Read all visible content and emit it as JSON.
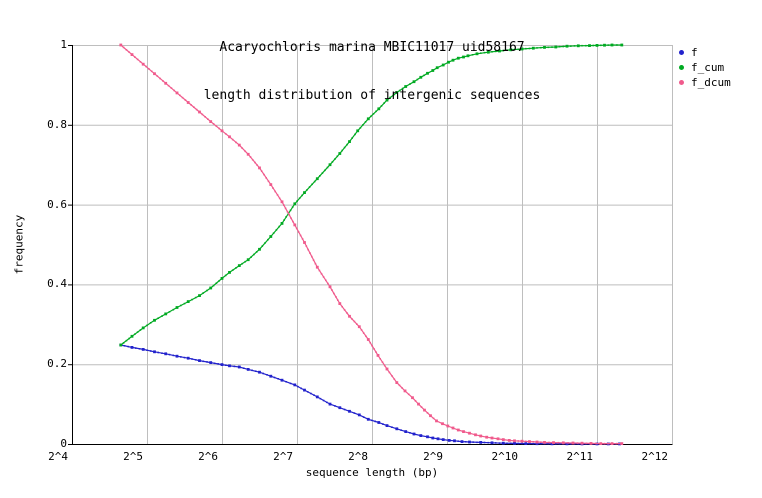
{
  "colors": {
    "background": "#ffffff",
    "axis": "#000000",
    "grid": "#bebebe",
    "text": "#000000",
    "series_f": "#2222cc",
    "series_f_cum": "#00aa22",
    "series_f_dcum": "#f05a8c"
  },
  "legend": {
    "items": [
      {
        "label": "f",
        "color": "#2222cc"
      },
      {
        "label": "f_cum",
        "color": "#00aa22"
      },
      {
        "label": "f_dcum",
        "color": "#f05a8c"
      }
    ]
  },
  "chart_data": {
    "type": "line",
    "title": "Acaryochloris marina MBIC11017 uid58167",
    "subtitle": "length distribution of intergenic sequences",
    "xlabel": "sequence length (bp)",
    "ylabel": "frequency",
    "x_scale": "log2",
    "xlim_log2": [
      4,
      12
    ],
    "ylim": [
      0,
      1
    ],
    "grid": true,
    "legend_position": "right-outside",
    "x_ticks": [
      {
        "label": "2^4",
        "log2": 4
      },
      {
        "label": "2^5",
        "log2": 5
      },
      {
        "label": "2^6",
        "log2": 6
      },
      {
        "label": "2^7",
        "log2": 7
      },
      {
        "label": "2^8",
        "log2": 8
      },
      {
        "label": "2^9",
        "log2": 9
      },
      {
        "label": "2^10",
        "log2": 10
      },
      {
        "label": "2^11",
        "log2": 11
      },
      {
        "label": "2^12",
        "log2": 12
      }
    ],
    "y_ticks": [
      {
        "label": "0",
        "value": 0
      },
      {
        "label": "0.2",
        "value": 0.2
      },
      {
        "label": "0.4",
        "value": 0.4
      },
      {
        "label": "0.6",
        "value": 0.6
      },
      {
        "label": "0.8",
        "value": 0.8
      },
      {
        "label": "1",
        "value": 1
      }
    ],
    "series": [
      {
        "name": "f",
        "color": "#2222cc",
        "marker": "square-dot",
        "points": [
          [
            4.65,
            0.248
          ],
          [
            4.8,
            0.242
          ],
          [
            4.95,
            0.237
          ],
          [
            5.1,
            0.231
          ],
          [
            5.25,
            0.226
          ],
          [
            5.4,
            0.22
          ],
          [
            5.55,
            0.215
          ],
          [
            5.7,
            0.209
          ],
          [
            5.85,
            0.204
          ],
          [
            6.0,
            0.199
          ],
          [
            6.1,
            0.196
          ],
          [
            6.23,
            0.193
          ],
          [
            6.35,
            0.187
          ],
          [
            6.5,
            0.18
          ],
          [
            6.65,
            0.17
          ],
          [
            6.8,
            0.16
          ],
          [
            6.97,
            0.148
          ],
          [
            7.1,
            0.135
          ],
          [
            7.27,
            0.118
          ],
          [
            7.44,
            0.1
          ],
          [
            7.57,
            0.091
          ],
          [
            7.7,
            0.082
          ],
          [
            7.83,
            0.073
          ],
          [
            7.95,
            0.062
          ],
          [
            8.09,
            0.054
          ],
          [
            8.2,
            0.046
          ],
          [
            8.33,
            0.038
          ],
          [
            8.45,
            0.031
          ],
          [
            8.56,
            0.025
          ],
          [
            8.65,
            0.021
          ],
          [
            8.74,
            0.018
          ],
          [
            8.81,
            0.015
          ],
          [
            8.88,
            0.013
          ],
          [
            8.95,
            0.011
          ],
          [
            9.03,
            0.009
          ],
          [
            9.1,
            0.008
          ],
          [
            9.2,
            0.006
          ],
          [
            9.3,
            0.005
          ],
          [
            9.45,
            0.004
          ],
          [
            9.6,
            0.003
          ],
          [
            9.75,
            0.002
          ],
          [
            9.9,
            0.0015
          ],
          [
            10.05,
            0.001
          ],
          [
            10.2,
            0.0008
          ],
          [
            10.4,
            0.0006
          ],
          [
            10.6,
            0.0004
          ],
          [
            10.8,
            0.0003
          ],
          [
            11.0,
            0.0002
          ],
          [
            11.15,
            0.0002
          ],
          [
            11.3,
            0.0002
          ]
        ]
      },
      {
        "name": "f_cum",
        "color": "#00aa22",
        "marker": "square-dot",
        "points": [
          [
            4.65,
            0.248
          ],
          [
            4.8,
            0.27
          ],
          [
            4.95,
            0.291
          ],
          [
            5.1,
            0.31
          ],
          [
            5.25,
            0.326
          ],
          [
            5.4,
            0.342
          ],
          [
            5.55,
            0.357
          ],
          [
            5.7,
            0.372
          ],
          [
            5.85,
            0.391
          ],
          [
            6.0,
            0.415
          ],
          [
            6.1,
            0.43
          ],
          [
            6.23,
            0.447
          ],
          [
            6.35,
            0.462
          ],
          [
            6.5,
            0.488
          ],
          [
            6.65,
            0.52
          ],
          [
            6.8,
            0.553
          ],
          [
            6.97,
            0.602
          ],
          [
            7.1,
            0.63
          ],
          [
            7.27,
            0.665
          ],
          [
            7.44,
            0.7
          ],
          [
            7.57,
            0.728
          ],
          [
            7.7,
            0.758
          ],
          [
            7.81,
            0.785
          ],
          [
            7.95,
            0.815
          ],
          [
            8.09,
            0.84
          ],
          [
            8.2,
            0.862
          ],
          [
            8.33,
            0.881
          ],
          [
            8.45,
            0.896
          ],
          [
            8.56,
            0.908
          ],
          [
            8.65,
            0.919
          ],
          [
            8.74,
            0.929
          ],
          [
            8.81,
            0.936
          ],
          [
            8.87,
            0.943
          ],
          [
            8.95,
            0.95
          ],
          [
            9.02,
            0.957
          ],
          [
            9.08,
            0.962
          ],
          [
            9.15,
            0.967
          ],
          [
            9.22,
            0.97
          ],
          [
            9.28,
            0.973
          ],
          [
            9.4,
            0.978
          ],
          [
            9.55,
            0.982
          ],
          [
            9.7,
            0.985
          ],
          [
            9.85,
            0.988
          ],
          [
            10.0,
            0.99
          ],
          [
            10.15,
            0.992
          ],
          [
            10.3,
            0.994
          ],
          [
            10.45,
            0.995
          ],
          [
            10.6,
            0.997
          ],
          [
            10.75,
            0.998
          ],
          [
            10.9,
            0.9985
          ],
          [
            11.0,
            0.999
          ],
          [
            11.1,
            0.9995
          ],
          [
            11.2,
            1.0
          ],
          [
            11.33,
            1.0
          ]
        ]
      },
      {
        "name": "f_dcum",
        "color": "#f05a8c",
        "marker": "square-dot",
        "points": [
          [
            4.65,
            1.0
          ],
          [
            4.8,
            0.976
          ],
          [
            4.95,
            0.952
          ],
          [
            5.1,
            0.928
          ],
          [
            5.25,
            0.904
          ],
          [
            5.4,
            0.88
          ],
          [
            5.55,
            0.856
          ],
          [
            5.7,
            0.832
          ],
          [
            5.85,
            0.808
          ],
          [
            6.0,
            0.785
          ],
          [
            6.1,
            0.77
          ],
          [
            6.23,
            0.749
          ],
          [
            6.35,
            0.726
          ],
          [
            6.5,
            0.692
          ],
          [
            6.65,
            0.65
          ],
          [
            6.8,
            0.607
          ],
          [
            6.97,
            0.549
          ],
          [
            7.1,
            0.505
          ],
          [
            7.27,
            0.443
          ],
          [
            7.44,
            0.394
          ],
          [
            7.57,
            0.352
          ],
          [
            7.7,
            0.32
          ],
          [
            7.83,
            0.294
          ],
          [
            7.95,
            0.262
          ],
          [
            8.08,
            0.222
          ],
          [
            8.2,
            0.188
          ],
          [
            8.33,
            0.154
          ],
          [
            8.44,
            0.133
          ],
          [
            8.54,
            0.116
          ],
          [
            8.62,
            0.1
          ],
          [
            8.7,
            0.085
          ],
          [
            8.78,
            0.071
          ],
          [
            8.86,
            0.058
          ],
          [
            8.94,
            0.051
          ],
          [
            9.01,
            0.045
          ],
          [
            9.08,
            0.04
          ],
          [
            9.15,
            0.035
          ],
          [
            9.22,
            0.031
          ],
          [
            9.3,
            0.027
          ],
          [
            9.38,
            0.023
          ],
          [
            9.45,
            0.02
          ],
          [
            9.53,
            0.017
          ],
          [
            9.6,
            0.015
          ],
          [
            9.68,
            0.013
          ],
          [
            9.75,
            0.011
          ],
          [
            9.83,
            0.009
          ],
          [
            9.9,
            0.008
          ],
          [
            10.0,
            0.007
          ],
          [
            10.1,
            0.006
          ],
          [
            10.2,
            0.005
          ],
          [
            10.3,
            0.004
          ],
          [
            10.42,
            0.0035
          ],
          [
            10.55,
            0.003
          ],
          [
            10.68,
            0.0025
          ],
          [
            10.8,
            0.002
          ],
          [
            10.92,
            0.0015
          ],
          [
            11.05,
            0.001
          ],
          [
            11.2,
            0.001
          ],
          [
            11.33,
            0.001
          ]
        ]
      }
    ]
  }
}
